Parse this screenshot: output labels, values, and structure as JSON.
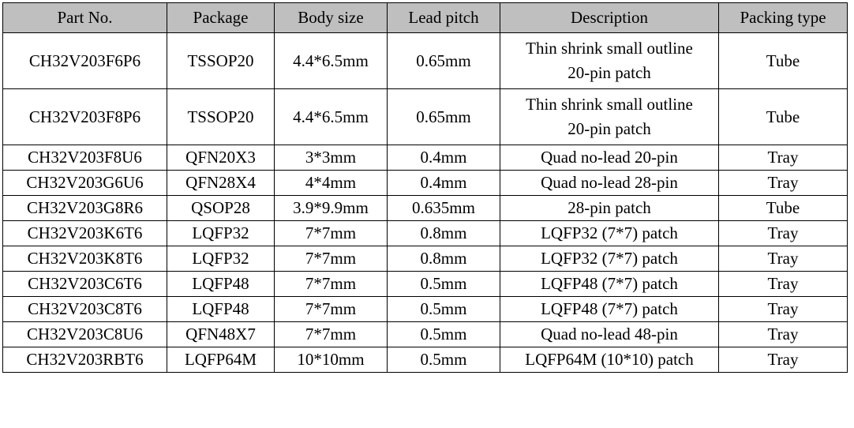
{
  "table": {
    "headers": [
      "Part No.",
      "Package",
      "Body size",
      "Lead pitch",
      "Description",
      "Packing type"
    ],
    "rows": [
      {
        "part_no": "CH32V203F6P6",
        "package": "TSSOP20",
        "body_size": "4.4*6.5mm",
        "lead_pitch": "0.65mm",
        "description": [
          "Thin shrink small outline",
          "20-pin patch"
        ],
        "packing_type": "Tube"
      },
      {
        "part_no": "CH32V203F8P6",
        "package": "TSSOP20",
        "body_size": "4.4*6.5mm",
        "lead_pitch": "0.65mm",
        "description": [
          "Thin shrink small outline",
          "20-pin patch"
        ],
        "packing_type": "Tube"
      },
      {
        "part_no": "CH32V203F8U6",
        "package": "QFN20X3",
        "body_size": "3*3mm",
        "lead_pitch": "0.4mm",
        "description": [
          "Quad no-lead 20-pin"
        ],
        "packing_type": "Tray"
      },
      {
        "part_no": "CH32V203G6U6",
        "package": "QFN28X4",
        "body_size": "4*4mm",
        "lead_pitch": "0.4mm",
        "description": [
          "Quad no-lead 28-pin"
        ],
        "packing_type": "Tray"
      },
      {
        "part_no": "CH32V203G8R6",
        "package": "QSOP28",
        "body_size": "3.9*9.9mm",
        "lead_pitch": "0.635mm",
        "description": [
          "28-pin patch"
        ],
        "packing_type": "Tube"
      },
      {
        "part_no": "CH32V203K6T6",
        "package": "LQFP32",
        "body_size": "7*7mm",
        "lead_pitch": "0.8mm",
        "description": [
          "LQFP32 (7*7) patch"
        ],
        "packing_type": "Tray"
      },
      {
        "part_no": "CH32V203K8T6",
        "package": "LQFP32",
        "body_size": "7*7mm",
        "lead_pitch": "0.8mm",
        "description": [
          "LQFP32 (7*7) patch"
        ],
        "packing_type": "Tray"
      },
      {
        "part_no": "CH32V203C6T6",
        "package": "LQFP48",
        "body_size": "7*7mm",
        "lead_pitch": "0.5mm",
        "description": [
          "LQFP48 (7*7) patch"
        ],
        "packing_type": "Tray"
      },
      {
        "part_no": "CH32V203C8T6",
        "package": "LQFP48",
        "body_size": "7*7mm",
        "lead_pitch": "0.5mm",
        "description": [
          "LQFP48 (7*7) patch"
        ],
        "packing_type": "Tray"
      },
      {
        "part_no": "CH32V203C8U6",
        "package": "QFN48X7",
        "body_size": "7*7mm",
        "lead_pitch": "0.5mm",
        "description": [
          "Quad no-lead 48-pin"
        ],
        "packing_type": "Tray"
      },
      {
        "part_no": "CH32V203RBT6",
        "package": "LQFP64M",
        "body_size": "10*10mm",
        "lead_pitch": "0.5mm",
        "description": [
          "LQFP64M (10*10) patch"
        ],
        "packing_type": "Tray"
      }
    ]
  },
  "colors": {
    "header_background": "#bfbfbf",
    "border": "#000000",
    "text": "#000000"
  }
}
